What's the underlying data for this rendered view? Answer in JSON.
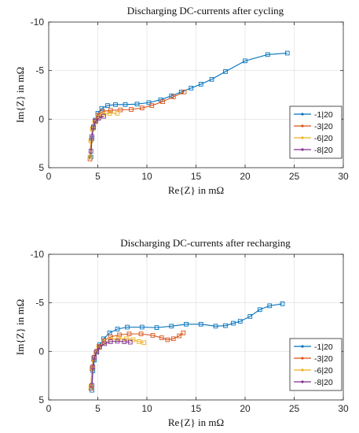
{
  "chart_data": [
    {
      "type": "line",
      "title": "Discharging DC-currents after cycling",
      "xlabel": "Re{Z} in mΩ",
      "ylabel": "Im{Z} in mΩ",
      "xlim": [
        0,
        30
      ],
      "ylim": [
        5,
        -10
      ],
      "xticks": [
        0,
        5,
        10,
        15,
        20,
        25,
        30
      ],
      "yticks": [
        -10,
        -5,
        0,
        5
      ],
      "grid": true,
      "legend_position": "bottom-right",
      "series": [
        {
          "name": "-1|20",
          "color": "#0072BD",
          "marker": "square",
          "x": [
            4.3,
            4.4,
            4.55,
            4.75,
            5.0,
            5.4,
            6.0,
            6.8,
            7.8,
            9.0,
            10.2,
            11.4,
            12.5,
            13.5,
            14.5,
            15.5,
            16.6,
            18.0,
            20.0,
            22.3,
            24.3
          ],
          "y": [
            3.9,
            2.0,
            0.9,
            0.1,
            -0.6,
            -1.1,
            -1.4,
            -1.5,
            -1.5,
            -1.55,
            -1.7,
            -2.0,
            -2.4,
            -2.8,
            -3.2,
            -3.6,
            -4.1,
            -4.9,
            -6.0,
            -6.65,
            -6.8
          ]
        },
        {
          "name": "-3|20",
          "color": "#D95319",
          "marker": "square",
          "x": [
            4.2,
            4.3,
            4.45,
            4.7,
            5.0,
            5.5,
            6.3,
            7.3,
            8.4,
            9.5,
            10.5,
            11.6,
            12.7,
            13.8
          ],
          "y": [
            4.1,
            2.2,
            1.0,
            0.2,
            -0.4,
            -0.8,
            -0.9,
            -0.95,
            -1.0,
            -1.15,
            -1.4,
            -1.8,
            -2.3,
            -2.8
          ]
        },
        {
          "name": "-6|20",
          "color": "#EDB120",
          "marker": "square",
          "x": [
            4.2,
            4.3,
            4.45,
            4.7,
            5.0,
            5.5,
            6.2,
            7.0
          ],
          "y": [
            3.9,
            2.2,
            1.0,
            0.3,
            -0.2,
            -0.5,
            -0.6,
            -0.6
          ]
        },
        {
          "name": "-8|20",
          "color": "#7E2F8E",
          "marker": "square",
          "x": [
            4.3,
            4.4,
            4.55,
            4.8,
            5.1,
            5.6
          ],
          "y": [
            3.3,
            1.8,
            0.8,
            0.2,
            -0.1,
            -0.3
          ]
        }
      ]
    },
    {
      "type": "line",
      "title": "Discharging DC-currents after recharging",
      "xlabel": "Re{Z} in mΩ",
      "ylabel": "Im{Z} in mΩ",
      "xlim": [
        0,
        30
      ],
      "ylim": [
        5,
        -10
      ],
      "xticks": [
        0,
        5,
        10,
        15,
        20,
        25,
        30
      ],
      "yticks": [
        -10,
        -5,
        0,
        5
      ],
      "grid": true,
      "legend_position": "bottom-right",
      "series": [
        {
          "name": "-1|20",
          "color": "#0072BD",
          "marker": "square",
          "x": [
            4.4,
            4.5,
            4.65,
            4.9,
            5.2,
            5.6,
            6.2,
            7.0,
            8.0,
            9.5,
            11.0,
            12.5,
            14.0,
            15.5,
            17.0,
            18.0,
            18.8,
            19.5,
            20.5,
            21.5,
            22.5,
            23.8
          ],
          "y": [
            4.0,
            2.0,
            0.9,
            0.1,
            -0.7,
            -1.3,
            -1.9,
            -2.3,
            -2.5,
            -2.5,
            -2.45,
            -2.6,
            -2.8,
            -2.8,
            -2.6,
            -2.65,
            -2.9,
            -3.1,
            -3.6,
            -4.3,
            -4.7,
            -4.9
          ]
        },
        {
          "name": "-3|20",
          "color": "#D95319",
          "marker": "square",
          "x": [
            4.3,
            4.4,
            4.55,
            4.8,
            5.1,
            5.6,
            6.3,
            7.2,
            8.2,
            9.4,
            10.6,
            11.5,
            12.1,
            12.7,
            13.3,
            13.7
          ],
          "y": [
            3.8,
            1.8,
            0.8,
            0.1,
            -0.5,
            -1.1,
            -1.5,
            -1.7,
            -1.8,
            -1.8,
            -1.65,
            -1.4,
            -1.2,
            -1.3,
            -1.6,
            -1.9
          ]
        },
        {
          "name": "-6|20",
          "color": "#EDB120",
          "marker": "square",
          "x": [
            4.3,
            4.4,
            4.55,
            4.8,
            5.1,
            5.6,
            6.3,
            7.1,
            7.9,
            8.6,
            9.2,
            9.7
          ],
          "y": [
            3.6,
            1.7,
            0.7,
            0.1,
            -0.4,
            -0.9,
            -1.2,
            -1.35,
            -1.3,
            -1.2,
            -1.0,
            -0.9
          ]
        },
        {
          "name": "-8|20",
          "color": "#7E2F8E",
          "marker": "square",
          "x": [
            4.4,
            4.5,
            4.65,
            4.9,
            5.2,
            5.7,
            6.3,
            7.0,
            7.7,
            8.3
          ],
          "y": [
            3.5,
            1.6,
            0.6,
            0.0,
            -0.45,
            -0.8,
            -1.0,
            -1.05,
            -1.0,
            -0.95
          ]
        }
      ]
    }
  ]
}
